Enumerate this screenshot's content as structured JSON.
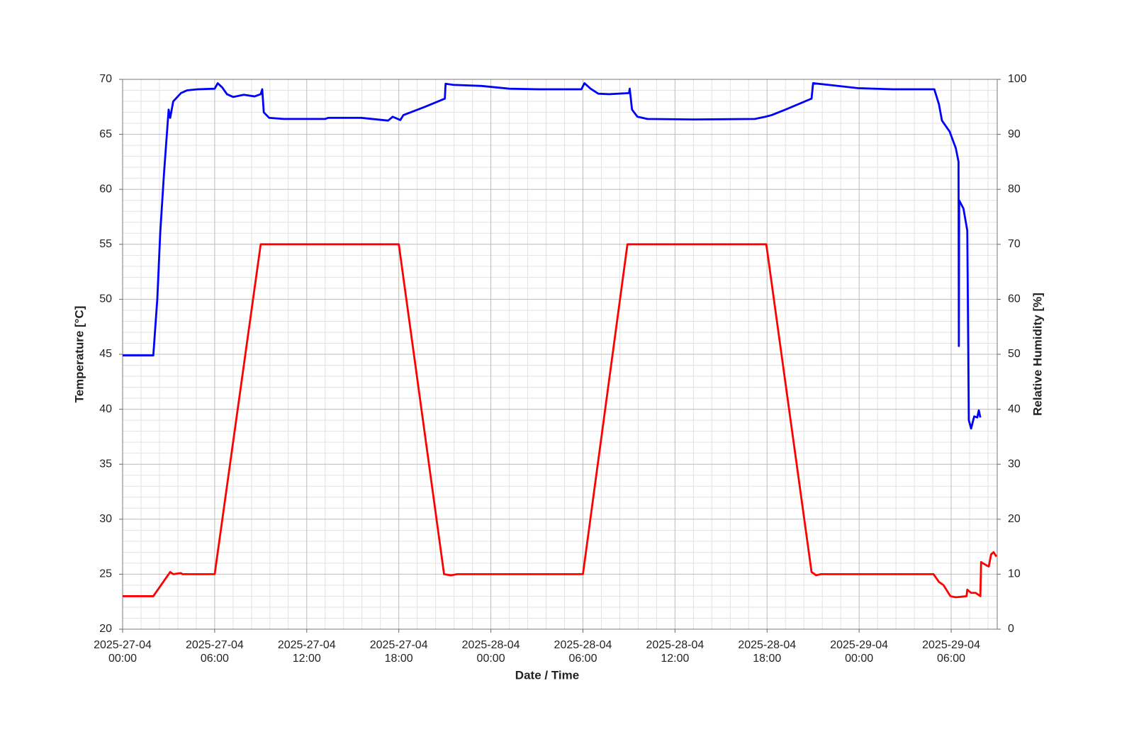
{
  "chart_data": {
    "type": "line",
    "xlabel": "Date / Time",
    "ylabel": "Temperature [°C]",
    "y2label": "Relative Humidity [%]",
    "ylabel_color": "#ff0000",
    "y2label_color": "#0000ff",
    "xlim": [
      0,
      57
    ],
    "xticks": [
      {
        "value": 0,
        "label": "2025-27-04\n00:00"
      },
      {
        "value": 6,
        "label": "2025-27-04\n06:00"
      },
      {
        "value": 12,
        "label": "2025-27-04\n12:00"
      },
      {
        "value": 18,
        "label": "2025-27-04\n18:00"
      },
      {
        "value": 24,
        "label": "2025-28-04\n00:00"
      },
      {
        "value": 30,
        "label": "2025-28-04\n06:00"
      },
      {
        "value": 36,
        "label": "2025-28-04\n12:00"
      },
      {
        "value": 42,
        "label": "2025-28-04\n18:00"
      },
      {
        "value": 48,
        "label": "2025-29-04\n00:00"
      },
      {
        "value": 54,
        "label": "2025-29-04\n06:00"
      }
    ],
    "ylim": [
      20,
      70
    ],
    "yticks": [
      20,
      25,
      30,
      35,
      40,
      45,
      50,
      55,
      60,
      65,
      70
    ],
    "y2lim": [
      0,
      100
    ],
    "y2ticks": [
      0,
      10,
      20,
      30,
      40,
      50,
      60,
      70,
      80,
      90,
      100
    ],
    "grid": true,
    "minor_grid_divisions": 5,
    "series": [
      {
        "color": "#ff0000",
        "axis": "y",
        "x": [
          0,
          2.0,
          3.1,
          3.3,
          3.8,
          3.9,
          6.0,
          9.0,
          9.2,
          18.0,
          20.95,
          21.4,
          21.8,
          30.0,
          32.9,
          41.95,
          44.9,
          45.2,
          45.5,
          52.85,
          53.2,
          53.5,
          53.95,
          54.3,
          55.0,
          55.05,
          55.3,
          55.6,
          55.9,
          55.95,
          56.3,
          56.45,
          56.6,
          56.76,
          56.95
        ],
        "values": [
          23,
          23,
          25.2,
          25,
          25.1,
          25,
          25,
          55,
          55,
          55,
          25,
          24.9,
          25,
          25,
          55,
          55,
          25.2,
          24.9,
          25,
          25,
          24.3,
          24,
          23,
          22.9,
          23,
          23.6,
          23.3,
          23.3,
          23,
          26.1,
          25.8,
          25.7,
          26.8,
          27,
          26.6
        ]
      },
      {
        "color": "#0000ff",
        "axis": "y2",
        "x": [
          0,
          2.0,
          2.26,
          2.45,
          2.7,
          3.0,
          3.1,
          3.3,
          3.8,
          4.2,
          4.9,
          6.0,
          6.2,
          6.5,
          6.8,
          7.2,
          7.9,
          8.6,
          9.0,
          9.1,
          9.2,
          9.55,
          10.5,
          13.2,
          13.4,
          15.55,
          17.3,
          17.6,
          18.1,
          18.3,
          19.7,
          21.0,
          21.05,
          21.55,
          23.4,
          25.2,
          27.1,
          29.9,
          30.1,
          30.5,
          31.0,
          31.7,
          33.0,
          33.05,
          33.2,
          33.55,
          34.2,
          37.2,
          41.2,
          41.9,
          42.3,
          43.2,
          44.9,
          45.0,
          46.0,
          47.9,
          50.2,
          52.9,
          53.2,
          53.4,
          53.9,
          54.3,
          54.48,
          54.5,
          54.52,
          54.8,
          55.05,
          55.15,
          55.3,
          55.5,
          55.7,
          55.8,
          55.9
        ],
        "values": [
          49.8,
          49.8,
          60,
          72,
          83,
          94.5,
          93,
          96,
          97.5,
          98,
          98.2,
          98.3,
          99.3,
          98.5,
          97.3,
          96.8,
          97.2,
          96.9,
          97.3,
          98.2,
          94,
          93,
          92.8,
          92.8,
          93,
          93,
          92.5,
          93.2,
          92.6,
          93.5,
          95,
          96.5,
          99.2,
          99,
          98.8,
          98.3,
          98.2,
          98.2,
          99.3,
          98.3,
          97.4,
          97.3,
          97.5,
          98.3,
          94.5,
          93.2,
          92.8,
          92.7,
          92.8,
          93.2,
          93.5,
          94.5,
          96.5,
          99.3,
          99,
          98.4,
          98.2,
          98.2,
          95.5,
          92.5,
          90.5,
          87.5,
          85,
          51.5,
          78,
          76.5,
          72.5,
          38,
          36.5,
          38.7,
          38.5,
          39.8,
          38.5
        ]
      }
    ]
  }
}
